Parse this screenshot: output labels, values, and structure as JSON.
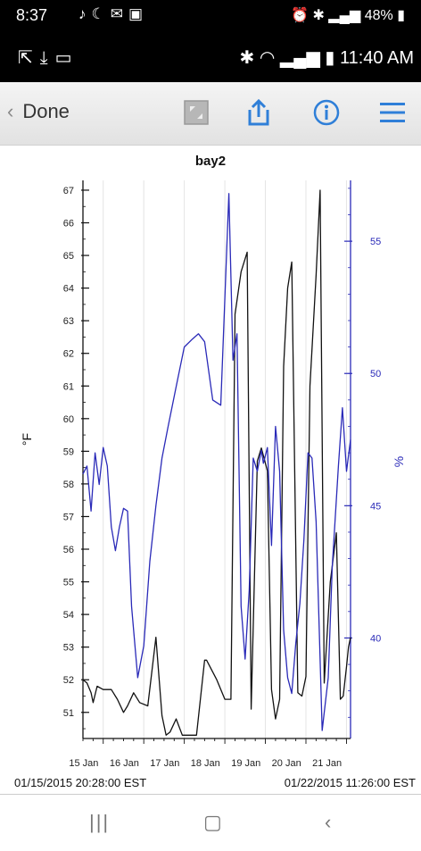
{
  "status_outer": {
    "time": "8:37",
    "battery": "48%"
  },
  "status_inner": {
    "time": "11:40 AM"
  },
  "toolbar": {
    "back_label": "Done",
    "icons": [
      "expand-icon",
      "share-icon",
      "info-icon",
      "menu-icon"
    ]
  },
  "colors": {
    "temperature": "#111111",
    "humidity": "#2a2ab8",
    "accent_blue": "#2f7fd8"
  },
  "footer": {
    "start_time": "01/15/2015 20:28:00 EST",
    "end_time": "01/22/2015 11:26:00 EST"
  },
  "chart_data": {
    "type": "line",
    "title": "bay2",
    "xlabel": "",
    "ylabel": "°F",
    "ylabel_right": "%",
    "x_ticks": [
      "15 Jan",
      "16 Jan",
      "17 Jan",
      "18 Jan",
      "19 Jan",
      "20 Jan",
      "21 Jan"
    ],
    "xlim": [
      0,
      6.6
    ],
    "ylim": [
      50.2,
      67.3
    ],
    "ylim_right": [
      36.2,
      57.3
    ],
    "y_ticks": [
      51,
      52,
      53,
      54,
      55,
      56,
      57,
      58,
      59,
      60,
      61,
      62,
      63,
      64,
      65,
      66,
      67
    ],
    "y_ticks_right": [
      40,
      45,
      50,
      55
    ],
    "grid": "vertical",
    "series": [
      {
        "axis": "left",
        "x": [
          0,
          0.1,
          0.2,
          0.25,
          0.35,
          0.5,
          0.7,
          0.85,
          1.0,
          1.1,
          1.25,
          1.4,
          1.6,
          1.8,
          1.95,
          2.05,
          2.15,
          2.3,
          2.45,
          2.6,
          2.8,
          3.0,
          3.05,
          3.3,
          3.5,
          3.65,
          3.75,
          3.9,
          4.05,
          4.15,
          4.3,
          4.4,
          4.55,
          4.65,
          4.75,
          4.85,
          4.95,
          5.05,
          5.15,
          5.3,
          5.4,
          5.5,
          5.6,
          5.75,
          5.85,
          5.95,
          6.1,
          6.25,
          6.35,
          6.42,
          6.5,
          6.55,
          6.6
        ],
        "y": [
          52.0,
          51.9,
          51.6,
          51.3,
          51.8,
          51.7,
          51.7,
          51.4,
          51.0,
          51.2,
          51.6,
          51.3,
          51.2,
          53.3,
          50.9,
          50.3,
          50.4,
          50.8,
          50.3,
          50.3,
          50.3,
          52.6,
          52.6,
          52.0,
          51.4,
          51.4,
          63.2,
          64.5,
          65.1,
          51.1,
          58.7,
          59.1,
          58.4,
          51.7,
          50.8,
          51.4,
          61.6,
          64.0,
          64.8,
          51.6,
          51.5,
          52.1,
          61.0,
          64.4,
          67.0,
          51.9,
          55.0,
          56.5,
          51.4,
          51.5,
          52.4,
          53.0,
          53.3
        ],
        "color": "#111111"
      },
      {
        "axis": "right",
        "x": [
          0,
          0.1,
          0.2,
          0.3,
          0.4,
          0.5,
          0.6,
          0.7,
          0.8,
          0.9,
          1.0,
          1.1,
          1.2,
          1.35,
          1.5,
          1.65,
          1.8,
          1.95,
          2.1,
          2.3,
          2.5,
          2.7,
          2.85,
          3.0,
          3.2,
          3.4,
          3.6,
          3.7,
          3.8,
          3.9,
          4.0,
          4.1,
          4.2,
          4.3,
          4.4,
          4.45,
          4.55,
          4.65,
          4.75,
          4.85,
          4.95,
          5.05,
          5.15,
          5.25,
          5.35,
          5.45,
          5.55,
          5.65,
          5.75,
          5.9,
          6.05,
          6.15,
          6.3,
          6.4,
          6.5,
          6.6
        ],
        "y": [
          46.2,
          46.5,
          44.8,
          47.0,
          45.8,
          47.2,
          46.5,
          44.2,
          43.3,
          44.2,
          44.9,
          44.8,
          41.2,
          38.5,
          39.7,
          42.9,
          45.0,
          46.8,
          48.0,
          49.5,
          51.0,
          51.3,
          51.5,
          51.2,
          49.0,
          48.8,
          56.8,
          50.5,
          51.5,
          41.2,
          39.2,
          41.8,
          46.8,
          46.3,
          47.1,
          46.6,
          47.2,
          43.5,
          48.0,
          46.3,
          40.3,
          38.5,
          37.9,
          39.8,
          41.3,
          43.7,
          47.0,
          46.8,
          44.4,
          36.5,
          38.5,
          42.7,
          46.5,
          48.7,
          46.3,
          47.5
        ],
        "color": "#2a2ab8"
      }
    ]
  }
}
